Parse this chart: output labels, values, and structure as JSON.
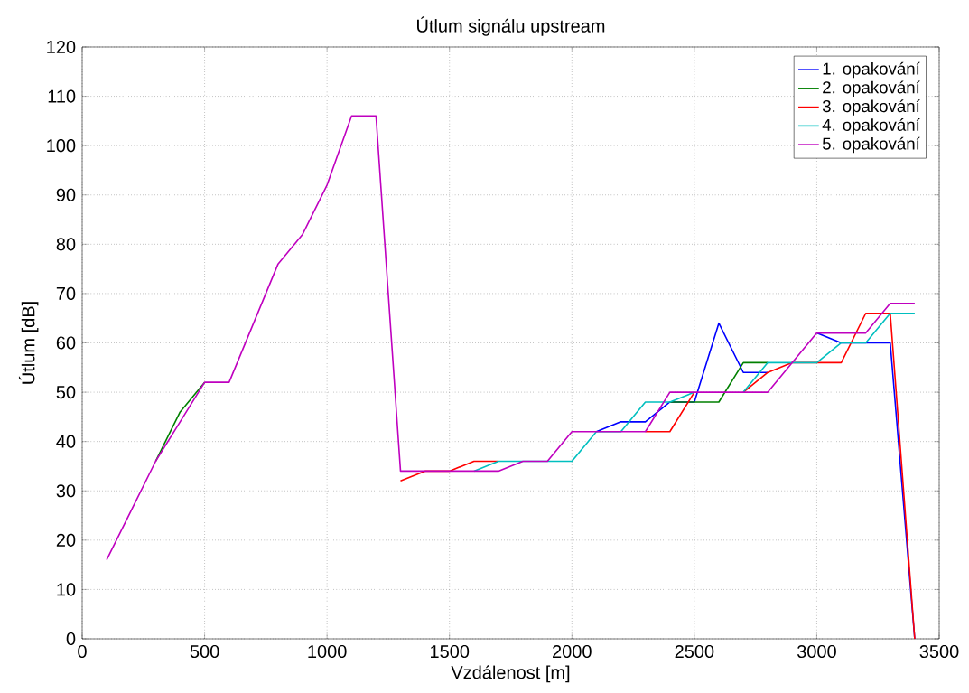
{
  "chart_data": {
    "type": "line",
    "title": "Útlum signálu upstream",
    "xlabel": "Vzdálenost [m]",
    "ylabel": "Útlum [dB]",
    "x": [
      100,
      200,
      300,
      400,
      500,
      600,
      700,
      800,
      900,
      1000,
      1100,
      1200,
      1300,
      1400,
      1500,
      1600,
      1700,
      1800,
      1900,
      2000,
      2100,
      2200,
      2300,
      2400,
      2500,
      2600,
      2700,
      2800,
      2900,
      3000,
      3100,
      3200,
      3300,
      3400
    ],
    "series": [
      {
        "name": "1. opakování",
        "color": "#0000ff",
        "values": [
          null,
          null,
          null,
          null,
          null,
          null,
          null,
          null,
          null,
          null,
          null,
          null,
          null,
          null,
          null,
          null,
          null,
          null,
          null,
          null,
          42,
          44,
          44,
          48,
          48,
          64,
          54,
          54,
          null,
          62,
          60,
          60,
          60,
          0
        ]
      },
      {
        "name": "2. opakování",
        "color": "#008000",
        "values": [
          null,
          null,
          36,
          46,
          52,
          null,
          null,
          null,
          null,
          null,
          null,
          null,
          null,
          null,
          null,
          null,
          null,
          null,
          null,
          null,
          null,
          null,
          null,
          48,
          48,
          48,
          56,
          56,
          null,
          null,
          null,
          null,
          null,
          null
        ]
      },
      {
        "name": "3. opakování",
        "color": "#ff0000",
        "values": [
          null,
          null,
          null,
          null,
          null,
          null,
          null,
          null,
          null,
          null,
          null,
          null,
          32,
          34,
          34,
          36,
          36,
          null,
          null,
          null,
          null,
          null,
          42,
          42,
          50,
          null,
          50,
          54,
          56,
          56,
          56,
          66,
          66,
          0
        ]
      },
      {
        "name": "4. opakování",
        "color": "#00bfbf",
        "values": [
          null,
          null,
          null,
          null,
          null,
          null,
          null,
          null,
          null,
          null,
          null,
          null,
          null,
          null,
          null,
          34,
          36,
          36,
          36,
          36,
          42,
          42,
          48,
          48,
          50,
          null,
          50,
          56,
          56,
          56,
          60,
          60,
          66,
          66
        ]
      },
      {
        "name": "5. opakování",
        "color": "#bf00bf",
        "values": [
          16,
          26,
          36,
          44,
          52,
          52,
          64,
          76,
          82,
          92,
          106,
          106,
          34,
          34,
          34,
          34,
          34,
          36,
          36,
          42,
          42,
          42,
          42,
          50,
          50,
          50,
          50,
          50,
          56,
          62,
          62,
          62,
          68,
          68
        ]
      }
    ],
    "xlim": [
      0,
      3500
    ],
    "xticks": [
      0,
      500,
      1000,
      1500,
      2000,
      2500,
      3000,
      3500
    ],
    "ylim": [
      0,
      120
    ],
    "yticks": [
      0,
      10,
      20,
      30,
      40,
      50,
      60,
      70,
      80,
      90,
      100,
      110,
      120
    ],
    "grid": true,
    "legend": "top right",
    "line_style": "solid",
    "marker": "none"
  }
}
